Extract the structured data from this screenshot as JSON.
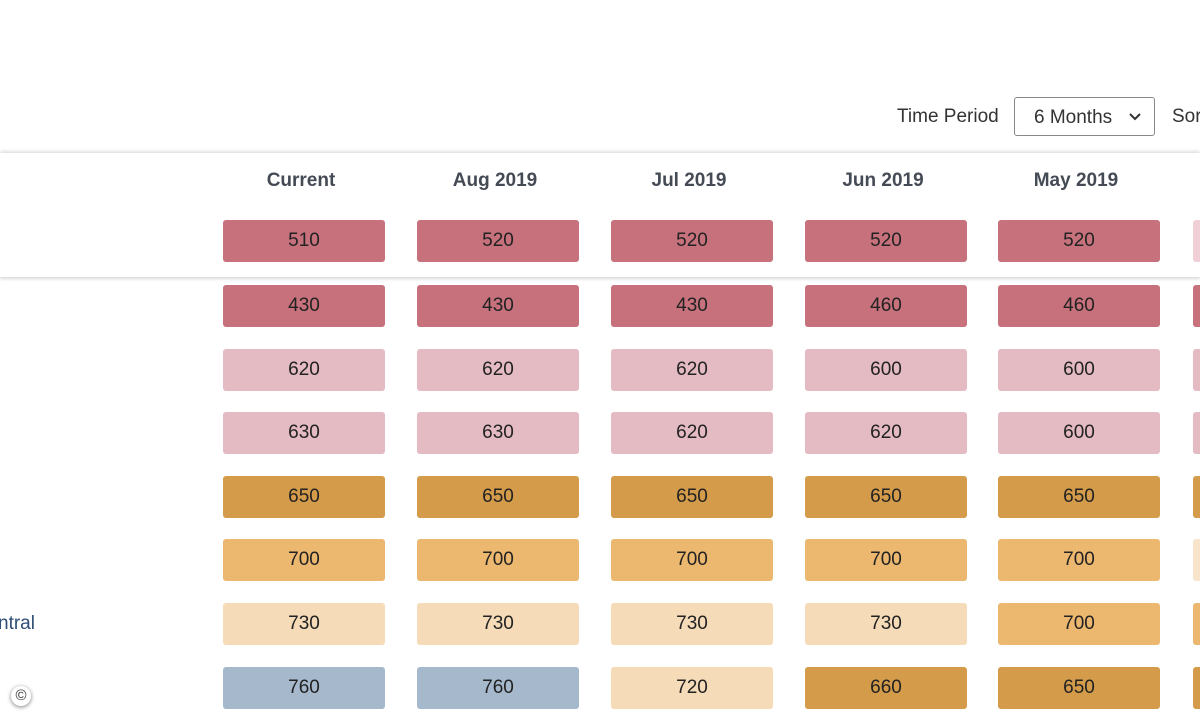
{
  "toolbar": {
    "time_period_label": "Time Period",
    "time_period_value": "6 Months",
    "sort_label": "Sor"
  },
  "table": {
    "columns": [
      "Current",
      "Aug 2019",
      "Jul 2019",
      "Jun 2019",
      "May 2019"
    ],
    "row_labels": [
      null,
      null,
      null,
      null,
      null,
      null,
      "ntral",
      null
    ],
    "rows": [
      {
        "cells": [
          {
            "value": 510,
            "color": "#c6717c"
          },
          {
            "value": 520,
            "color": "#c6717c"
          },
          {
            "value": 520,
            "color": "#c6717c"
          },
          {
            "value": 520,
            "color": "#c6717c"
          },
          {
            "value": 520,
            "color": "#c6717c"
          }
        ]
      },
      {
        "cells": [
          {
            "value": 430,
            "color": "#c6717c"
          },
          {
            "value": 430,
            "color": "#c6717c"
          },
          {
            "value": 430,
            "color": "#c6717c"
          },
          {
            "value": 460,
            "color": "#c6717c"
          },
          {
            "value": 460,
            "color": "#c6717c"
          }
        ]
      },
      {
        "cells": [
          {
            "value": 620,
            "color": "#e4bac3"
          },
          {
            "value": 620,
            "color": "#e4bac3"
          },
          {
            "value": 620,
            "color": "#e4bac3"
          },
          {
            "value": 600,
            "color": "#e4bac3"
          },
          {
            "value": 600,
            "color": "#e4bac3"
          }
        ]
      },
      {
        "cells": [
          {
            "value": 630,
            "color": "#e4bac3"
          },
          {
            "value": 630,
            "color": "#e4bac3"
          },
          {
            "value": 620,
            "color": "#e4bac3"
          },
          {
            "value": 620,
            "color": "#e4bac3"
          },
          {
            "value": 600,
            "color": "#e4bac3"
          }
        ]
      },
      {
        "cells": [
          {
            "value": 650,
            "color": "#d49b4a"
          },
          {
            "value": 650,
            "color": "#d49b4a"
          },
          {
            "value": 650,
            "color": "#d49b4a"
          },
          {
            "value": 650,
            "color": "#d49b4a"
          },
          {
            "value": 650,
            "color": "#d49b4a"
          }
        ]
      },
      {
        "cells": [
          {
            "value": 700,
            "color": "#ecb76e"
          },
          {
            "value": 700,
            "color": "#ecb76e"
          },
          {
            "value": 700,
            "color": "#ecb76e"
          },
          {
            "value": 700,
            "color": "#ecb76e"
          },
          {
            "value": 700,
            "color": "#ecb76e"
          }
        ]
      },
      {
        "cells": [
          {
            "value": 730,
            "color": "#f5dbb8"
          },
          {
            "value": 730,
            "color": "#f5dbb8"
          },
          {
            "value": 730,
            "color": "#f5dbb8"
          },
          {
            "value": 730,
            "color": "#f5dbb8"
          },
          {
            "value": 700,
            "color": "#ecb76e"
          }
        ]
      },
      {
        "cells": [
          {
            "value": 760,
            "color": "#a6b8cb"
          },
          {
            "value": 760,
            "color": "#a6b8cb"
          },
          {
            "value": 720,
            "color": "#f5dbb8"
          },
          {
            "value": 660,
            "color": "#d49b4a"
          },
          {
            "value": 650,
            "color": "#d49b4a"
          }
        ]
      }
    ]
  },
  "footer": {
    "copyright": "©"
  }
}
